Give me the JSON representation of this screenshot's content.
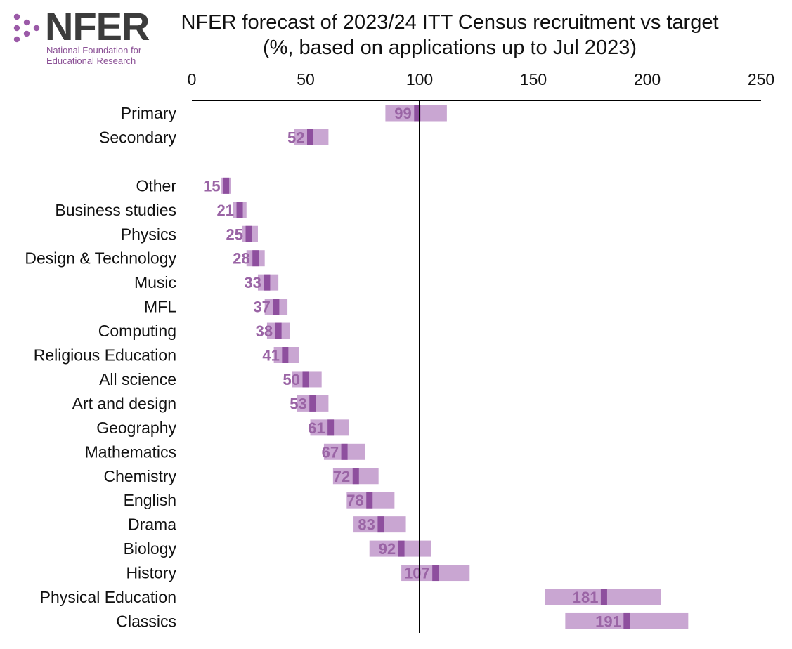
{
  "logo": {
    "wordmark": "NFER",
    "subtitle_line1": "National Foundation for",
    "subtitle_line2": "Educational Research"
  },
  "colors": {
    "range_bar": "#c9a6d2",
    "point_marker": "#8e4f9e",
    "value_label": "#9a64a5",
    "logo_dots": "#9b5aa8",
    "axis": "#000000"
  },
  "chart_data": {
    "type": "bar",
    "orientation": "horizontal",
    "title_line1": "NFER forecast of 2023/24 ITT Census recruitment vs target",
    "title_line2": "(%, based on applications up to Jul 2023)",
    "x_ticks": [
      "0",
      "50",
      "100",
      "150",
      "200",
      "250"
    ],
    "xlim": [
      0,
      250
    ],
    "reference_line": 100,
    "grid": false,
    "groups": [
      {
        "categories": [
          "Primary",
          "Secondary"
        ],
        "values": [
          99,
          52
        ],
        "low": [
          85,
          45
        ],
        "high": [
          112,
          60
        ]
      },
      {
        "categories": [
          "Other",
          "Business studies",
          "Physics",
          "Design & Technology",
          "Music",
          "MFL",
          "Computing",
          "Religious Education",
          "All science",
          "Art and design",
          "Geography",
          "Mathematics",
          "Chemistry",
          "English",
          "Drama",
          "Biology",
          "History",
          "Physical Education",
          "Classics"
        ],
        "values": [
          15,
          21,
          25,
          28,
          33,
          37,
          38,
          41,
          50,
          53,
          61,
          67,
          72,
          78,
          83,
          92,
          107,
          181,
          191
        ],
        "low": [
          13,
          18,
          22,
          24,
          29,
          32,
          33,
          36,
          44,
          46,
          52,
          58,
          62,
          68,
          71,
          78,
          92,
          155,
          164
        ],
        "high": [
          17,
          24,
          29,
          32,
          38,
          42,
          43,
          47,
          57,
          60,
          69,
          76,
          82,
          89,
          94,
          105,
          122,
          206,
          218
        ]
      }
    ]
  }
}
